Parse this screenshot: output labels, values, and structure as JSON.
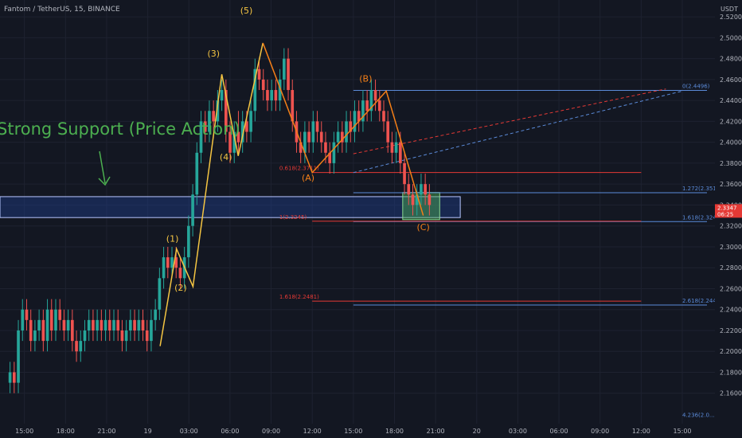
{
  "symbol_title": "Fantom / TetherUS, 15, BINANCE",
  "currency": "USDT",
  "colors": {
    "background": "#131722",
    "grid": "#1e2230",
    "up": "#26a69a",
    "down": "#ef5350",
    "wave": "#f5c542",
    "correction": "#f57f17",
    "fib_blue": "#5b8bd9",
    "fib_red": "#e53935",
    "support_label": "#4caf50",
    "support_zone": "#1e3f8a",
    "target_box": "#4caf50",
    "axis_text": "#b2b5be"
  },
  "chart_data": {
    "type": "candlestick",
    "ylim": [
      2.14,
      2.53
    ],
    "xlim": [
      0,
      108
    ],
    "x_ticks": [
      {
        "t": 4,
        "label": "15:00"
      },
      {
        "t": 14,
        "label": "18:00"
      },
      {
        "t": 24,
        "label": "21:00"
      },
      {
        "t": 34,
        "label": "19"
      },
      {
        "t": 44,
        "label": "03:00"
      },
      {
        "t": 54,
        "label": "06:00"
      },
      {
        "t": 64,
        "label": "09:00"
      },
      {
        "t": 74,
        "label": "12:00"
      },
      {
        "t": 84,
        "label": "15:00"
      },
      {
        "t": 94,
        "label": "18:00"
      },
      {
        "t": 104,
        "label": "21:00"
      },
      {
        "t": 114,
        "label": "20"
      },
      {
        "t": 124,
        "label": "03:00"
      },
      {
        "t": 134,
        "label": "06:00"
      },
      {
        "t": 144,
        "label": "09:00"
      },
      {
        "t": 154,
        "label": "12:00"
      },
      {
        "t": 164,
        "label": "15:00"
      }
    ],
    "y_ticks": [
      "2.5200",
      "2.5000",
      "2.4800",
      "2.4600",
      "2.4400",
      "2.4200",
      "2.4000",
      "2.3800",
      "2.3600",
      "2.3400",
      "2.3200",
      "2.3000",
      "2.2800",
      "2.2600",
      "2.2400",
      "2.2200",
      "2.2000",
      "2.1800",
      "2.1600"
    ],
    "candles": [
      [
        2.17,
        2.18,
        2.16,
        2.19
      ],
      [
        2.18,
        2.17,
        2.16,
        2.19
      ],
      [
        2.17,
        2.22,
        2.16,
        2.23
      ],
      [
        2.22,
        2.24,
        2.21,
        2.25
      ],
      [
        2.24,
        2.23,
        2.22,
        2.25
      ],
      [
        2.23,
        2.21,
        2.2,
        2.24
      ],
      [
        2.21,
        2.22,
        2.2,
        2.23
      ],
      [
        2.22,
        2.23,
        2.21,
        2.24
      ],
      [
        2.23,
        2.21,
        2.2,
        2.24
      ],
      [
        2.21,
        2.24,
        2.2,
        2.25
      ],
      [
        2.24,
        2.22,
        2.21,
        2.25
      ],
      [
        2.22,
        2.24,
        2.21,
        2.25
      ],
      [
        2.24,
        2.23,
        2.22,
        2.25
      ],
      [
        2.23,
        2.22,
        2.21,
        2.24
      ],
      [
        2.22,
        2.23,
        2.21,
        2.24
      ],
      [
        2.23,
        2.21,
        2.2,
        2.24
      ],
      [
        2.21,
        2.2,
        2.19,
        2.22
      ],
      [
        2.2,
        2.21,
        2.19,
        2.22
      ],
      [
        2.21,
        2.22,
        2.2,
        2.23
      ],
      [
        2.22,
        2.23,
        2.21,
        2.24
      ],
      [
        2.23,
        2.22,
        2.21,
        2.24
      ],
      [
        2.22,
        2.23,
        2.21,
        2.24
      ],
      [
        2.23,
        2.22,
        2.21,
        2.24
      ],
      [
        2.22,
        2.23,
        2.21,
        2.24
      ],
      [
        2.23,
        2.22,
        2.21,
        2.24
      ],
      [
        2.22,
        2.23,
        2.21,
        2.24
      ],
      [
        2.23,
        2.22,
        2.21,
        2.24
      ],
      [
        2.22,
        2.21,
        2.2,
        2.23
      ],
      [
        2.21,
        2.22,
        2.2,
        2.23
      ],
      [
        2.22,
        2.23,
        2.21,
        2.24
      ],
      [
        2.23,
        2.22,
        2.21,
        2.24
      ],
      [
        2.22,
        2.23,
        2.21,
        2.24
      ],
      [
        2.23,
        2.22,
        2.21,
        2.24
      ],
      [
        2.22,
        2.21,
        2.2,
        2.23
      ],
      [
        2.21,
        2.23,
        2.2,
        2.24
      ],
      [
        2.23,
        2.24,
        2.22,
        2.25
      ],
      [
        2.24,
        2.27,
        2.23,
        2.28
      ],
      [
        2.27,
        2.29,
        2.26,
        2.3
      ],
      [
        2.29,
        2.28,
        2.27,
        2.3
      ],
      [
        2.28,
        2.29,
        2.27,
        2.3
      ],
      [
        2.29,
        2.28,
        2.27,
        2.3
      ],
      [
        2.28,
        2.27,
        2.26,
        2.29
      ],
      [
        2.27,
        2.29,
        2.26,
        2.3
      ],
      [
        2.29,
        2.32,
        2.28,
        2.33
      ],
      [
        2.32,
        2.35,
        2.31,
        2.36
      ],
      [
        2.35,
        2.39,
        2.34,
        2.4
      ],
      [
        2.39,
        2.42,
        2.38,
        2.43
      ],
      [
        2.42,
        2.41,
        2.4,
        2.43
      ],
      [
        2.41,
        2.43,
        2.4,
        2.44
      ],
      [
        2.43,
        2.42,
        2.41,
        2.44
      ],
      [
        2.42,
        2.44,
        2.41,
        2.45
      ],
      [
        2.44,
        2.45,
        2.43,
        2.46
      ],
      [
        2.45,
        2.41,
        2.4,
        2.46
      ],
      [
        2.41,
        2.39,
        2.38,
        2.42
      ],
      [
        2.39,
        2.41,
        2.38,
        2.42
      ],
      [
        2.41,
        2.4,
        2.39,
        2.43
      ],
      [
        2.4,
        2.42,
        2.39,
        2.43
      ],
      [
        2.42,
        2.41,
        2.4,
        2.43
      ],
      [
        2.41,
        2.43,
        2.4,
        2.44
      ],
      [
        2.43,
        2.47,
        2.42,
        2.48
      ],
      [
        2.47,
        2.46,
        2.45,
        2.48
      ],
      [
        2.46,
        2.45,
        2.44,
        2.47
      ],
      [
        2.45,
        2.44,
        2.43,
        2.46
      ],
      [
        2.44,
        2.45,
        2.43,
        2.46
      ],
      [
        2.45,
        2.44,
        2.43,
        2.46
      ],
      [
        2.44,
        2.46,
        2.43,
        2.47
      ],
      [
        2.46,
        2.48,
        2.45,
        2.49
      ],
      [
        2.48,
        2.45,
        2.44,
        2.49
      ],
      [
        2.45,
        2.42,
        2.41,
        2.46
      ],
      [
        2.42,
        2.4,
        2.39,
        2.43
      ],
      [
        2.4,
        2.39,
        2.38,
        2.41
      ],
      [
        2.39,
        2.41,
        2.38,
        2.42
      ],
      [
        2.41,
        2.4,
        2.39,
        2.42
      ],
      [
        2.4,
        2.42,
        2.39,
        2.43
      ],
      [
        2.42,
        2.41,
        2.4,
        2.43
      ],
      [
        2.41,
        2.4,
        2.39,
        2.42
      ],
      [
        2.4,
        2.39,
        2.38,
        2.41
      ],
      [
        2.39,
        2.38,
        2.37,
        2.4
      ],
      [
        2.38,
        2.4,
        2.37,
        2.41
      ],
      [
        2.4,
        2.41,
        2.39,
        2.42
      ],
      [
        2.41,
        2.4,
        2.39,
        2.42
      ],
      [
        2.4,
        2.42,
        2.39,
        2.43
      ],
      [
        2.42,
        2.41,
        2.4,
        2.43
      ],
      [
        2.41,
        2.43,
        2.4,
        2.44
      ],
      [
        2.43,
        2.42,
        2.41,
        2.44
      ],
      [
        2.42,
        2.44,
        2.41,
        2.45
      ],
      [
        2.44,
        2.43,
        2.42,
        2.45
      ],
      [
        2.43,
        2.45,
        2.42,
        2.46
      ],
      [
        2.45,
        2.44,
        2.43,
        2.46
      ],
      [
        2.44,
        2.43,
        2.42,
        2.45
      ],
      [
        2.43,
        2.42,
        2.41,
        2.44
      ],
      [
        2.42,
        2.4,
        2.39,
        2.43
      ],
      [
        2.4,
        2.39,
        2.38,
        2.41
      ],
      [
        2.39,
        2.4,
        2.38,
        2.41
      ],
      [
        2.4,
        2.38,
        2.37,
        2.41
      ],
      [
        2.38,
        2.36,
        2.35,
        2.39
      ],
      [
        2.36,
        2.35,
        2.34,
        2.37
      ],
      [
        2.35,
        2.34,
        2.33,
        2.36
      ],
      [
        2.34,
        2.35,
        2.33,
        2.36
      ],
      [
        2.35,
        2.36,
        2.34,
        2.37
      ],
      [
        2.36,
        2.35,
        2.34,
        2.37
      ],
      [
        2.35,
        2.34,
        2.33,
        2.36
      ]
    ],
    "current_price": {
      "price": "2.3347",
      "timer": "06:25",
      "value": 2.3347
    },
    "annotations": [
      {
        "text": "(1)",
        "t": 40,
        "price": 2.305,
        "color": "wave"
      },
      {
        "text": "(2)",
        "t": 42,
        "price": 2.258,
        "color": "wave"
      },
      {
        "text": "(3)",
        "t": 50,
        "price": 2.482,
        "color": "wave"
      },
      {
        "text": "(4)",
        "t": 53,
        "price": 2.383,
        "color": "wave"
      },
      {
        "text": "(5)",
        "t": 58,
        "price": 2.523,
        "color": "wave"
      },
      {
        "text": "(A)",
        "t": 73,
        "price": 2.363,
        "color": "correction"
      },
      {
        "text": "(B)",
        "t": 87,
        "price": 2.458,
        "color": "correction"
      },
      {
        "text": "(C)",
        "t": 101,
        "price": 2.316,
        "color": "correction"
      }
    ],
    "support_label": "Strong Support (Price Action)",
    "fib_labels": [
      {
        "text": "0(2.4496)",
        "price": 2.4496,
        "axis": true,
        "color": "fib_blue"
      },
      {
        "text": "1.272(2.3518)",
        "price": 2.3518,
        "axis": true,
        "color": "fib_blue"
      },
      {
        "text": "1.618(2.3241)",
        "price": 2.3241,
        "axis": true,
        "color": "fib_blue"
      },
      {
        "text": "2.618(2.2444)",
        "price": 2.2444,
        "axis": true,
        "color": "fib_blue"
      },
      {
        "text": "0.618(2.3711)",
        "price": 2.3711,
        "axis": false,
        "color": "fib_red"
      },
      {
        "text": "1(2.3245)",
        "price": 2.3245,
        "axis": false,
        "color": "fib_red"
      },
      {
        "text": "1.618(2.2481)",
        "price": 2.2481,
        "axis": false,
        "color": "fib_red"
      },
      {
        "text": "4.236(2.0...",
        "price": 2.135,
        "axis": true,
        "color": "fib_blue"
      }
    ]
  }
}
